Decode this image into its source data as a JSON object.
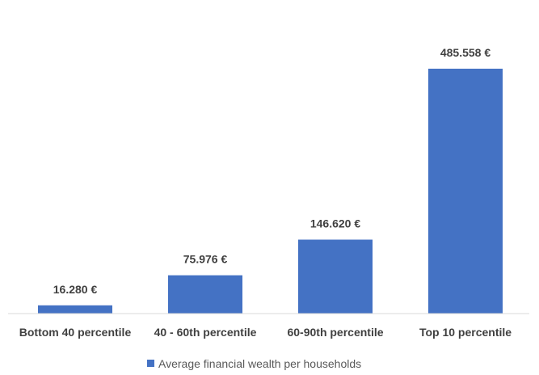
{
  "chart_data": {
    "type": "bar",
    "categories": [
      "Bottom 40 percentile",
      "40 - 60th percentile",
      "60-90th percentile",
      "Top 10 percentile"
    ],
    "series": [
      {
        "name": "Average financial wealth per households",
        "values": [
          16280,
          75976,
          146620,
          485558
        ],
        "labels": [
          "16.280 €",
          "75.976 €",
          "146.620 €",
          "485.558 €"
        ],
        "color": "#4472C4"
      }
    ],
    "ylim": [
      0,
      520000
    ],
    "grid": false,
    "legend": "bottom"
  }
}
